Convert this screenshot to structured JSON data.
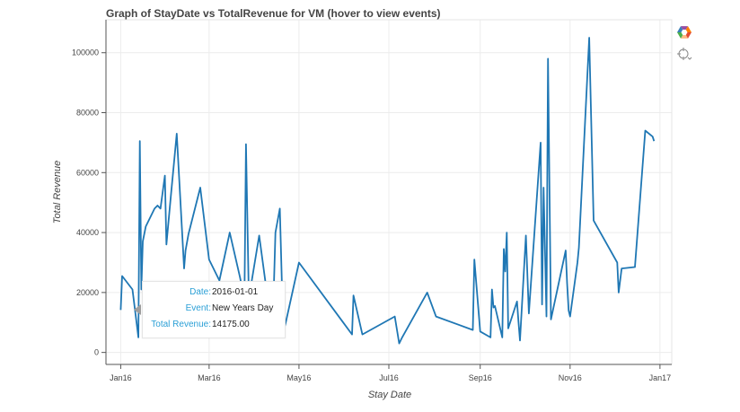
{
  "chart_data": {
    "type": "line",
    "title": "Graph of StayDate vs TotalRevenue for VM (hover to view events)",
    "xlabel": "Stay Date",
    "ylabel": "Total Revenue",
    "x_ticks": [
      "Jan16",
      "Mar16",
      "May16",
      "Jul16",
      "Sep16",
      "Nov16",
      "Jan17"
    ],
    "y_ticks": [
      "0",
      "20000",
      "40000",
      "60000",
      "80000",
      "100000"
    ],
    "ylim": [
      -4000,
      111000
    ],
    "grid": true,
    "line_color": "#1f77b4",
    "series": [
      {
        "x": [
          "2016-01-01",
          "2016-01-02",
          "2016-01-09",
          "2016-01-13",
          "2016-01-14",
          "2016-01-15",
          "2016-01-16",
          "2016-01-18",
          "2016-01-24",
          "2016-01-26",
          "2016-01-28",
          "2016-01-31",
          "2016-02-01",
          "2016-02-04",
          "2016-02-08",
          "2016-02-13",
          "2016-02-14",
          "2016-02-16",
          "2016-02-24",
          "2016-03-01",
          "2016-03-08",
          "2016-03-15",
          "2016-03-22",
          "2016-03-24",
          "2016-03-25",
          "2016-03-26",
          "2016-03-28",
          "2016-04-04",
          "2016-04-13",
          "2016-04-15",
          "2016-04-18",
          "2016-04-20",
          "2016-04-21",
          "2016-04-22",
          "2016-05-01",
          "2016-06-06",
          "2016-06-07",
          "2016-06-13",
          "2016-07-05",
          "2016-07-08",
          "2016-07-10",
          "2016-07-27",
          "2016-08-02",
          "2016-08-27",
          "2016-08-28",
          "2016-09-01",
          "2016-09-08",
          "2016-09-09",
          "2016-09-10",
          "2016-09-11",
          "2016-09-16",
          "2016-09-17",
          "2016-09-18",
          "2016-09-19",
          "2016-09-20",
          "2016-09-26",
          "2016-09-27",
          "2016-09-28",
          "2016-10-02",
          "2016-10-04",
          "2016-10-12",
          "2016-10-13",
          "2016-10-14",
          "2016-10-16",
          "2016-10-17",
          "2016-10-19",
          "2016-10-29",
          "2016-10-30",
          "2016-10-31",
          "2016-11-01",
          "2016-11-06",
          "2016-11-07",
          "2016-11-14",
          "2016-11-17",
          "2016-12-03",
          "2016-12-04",
          "2016-12-06",
          "2016-12-15",
          "2016-12-22",
          "2016-12-27",
          "2016-12-28"
        ],
        "y": [
          14175,
          25500,
          21000,
          5000,
          70500,
          21000,
          37000,
          42000,
          48000,
          49000,
          48000,
          59000,
          36000,
          52000,
          73000,
          28000,
          34000,
          39500,
          55000,
          31000,
          24000,
          40000,
          25000,
          20000,
          18000,
          69500,
          18000,
          39000,
          6000,
          40000,
          48000,
          12000,
          8000,
          10000,
          30000,
          6000,
          19000,
          6000,
          12000,
          3000,
          5000,
          20000,
          12000,
          7500,
          31000,
          7000,
          5000,
          21000,
          15000,
          15500,
          5000,
          34500,
          27000,
          40000,
          8000,
          17000,
          10000,
          4000,
          39000,
          13000,
          70000,
          16000,
          55000,
          12000,
          98000,
          11000,
          34000,
          23000,
          14000,
          12000,
          30000,
          35000,
          105000,
          44000,
          30000,
          20000,
          28000,
          28500,
          74000,
          72000,
          70500
        ]
      }
    ]
  },
  "tooltip": {
    "date_key": "Date:",
    "date_value": "2016-01-01",
    "event_key": "Event:",
    "event_value": "New Years Day",
    "revenue_key": "Total Revenue:",
    "revenue_value": "14175.00"
  },
  "toolbar": {
    "tools": [
      {
        "name": "bokeh-logo-icon",
        "icon": "bokeh-logo",
        "colors": [
          "#e34a33",
          "#fdbb84",
          "#4daf4a",
          "#377eb8",
          "#984ea3",
          "#ff7f00"
        ]
      },
      {
        "name": "hover-tool-icon",
        "icon": "crosshair-hover"
      }
    ]
  }
}
